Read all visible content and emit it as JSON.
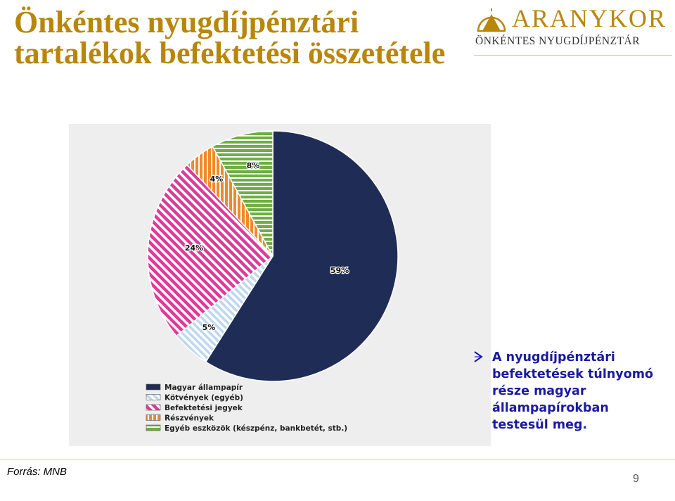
{
  "slide": {
    "title": "Önkéntes nyugdíjpénztári tartalékok befektetési összetétele",
    "logo_name": "ARANYKOR",
    "logo_subtitle": "ÖNKÉNTES NYUGDÍJPÉNZTÁR",
    "bullet": "A nyugdíjpénztári befektetések túlnyomó része  magyar állampapírokban testesül meg.",
    "source": "Forrás: MNB",
    "page_number": "9"
  },
  "colors": {
    "brand_gold": "#b8860b",
    "bullet_text": "#1a1aa0"
  },
  "chart_data": {
    "type": "pie",
    "title": "",
    "unit": "%",
    "legend_position": "bottom-left",
    "series": [
      {
        "name": "Magyar állampapír",
        "value": 59,
        "label": "59%",
        "color": "#1f2c55",
        "pattern": "solid"
      },
      {
        "name": "Kötvények (egyéb)",
        "value": 5,
        "label": "5%",
        "color": "#bdd7ee",
        "pattern": "diagonal-stripes"
      },
      {
        "name": "Befektetési jegyek",
        "value": 24,
        "label": "24%",
        "color": "#e0399a",
        "pattern": "diagonal-stripes"
      },
      {
        "name": "Részvények",
        "value": 4,
        "label": "4%",
        "color": "#f0892a",
        "pattern": "vertical-stripes"
      },
      {
        "name": "Egyéb eszközök (készpénz, bankbetét, stb.)",
        "value": 8,
        "label": "8%",
        "color": "#70ad47",
        "pattern": "horizontal-stripes"
      }
    ]
  }
}
